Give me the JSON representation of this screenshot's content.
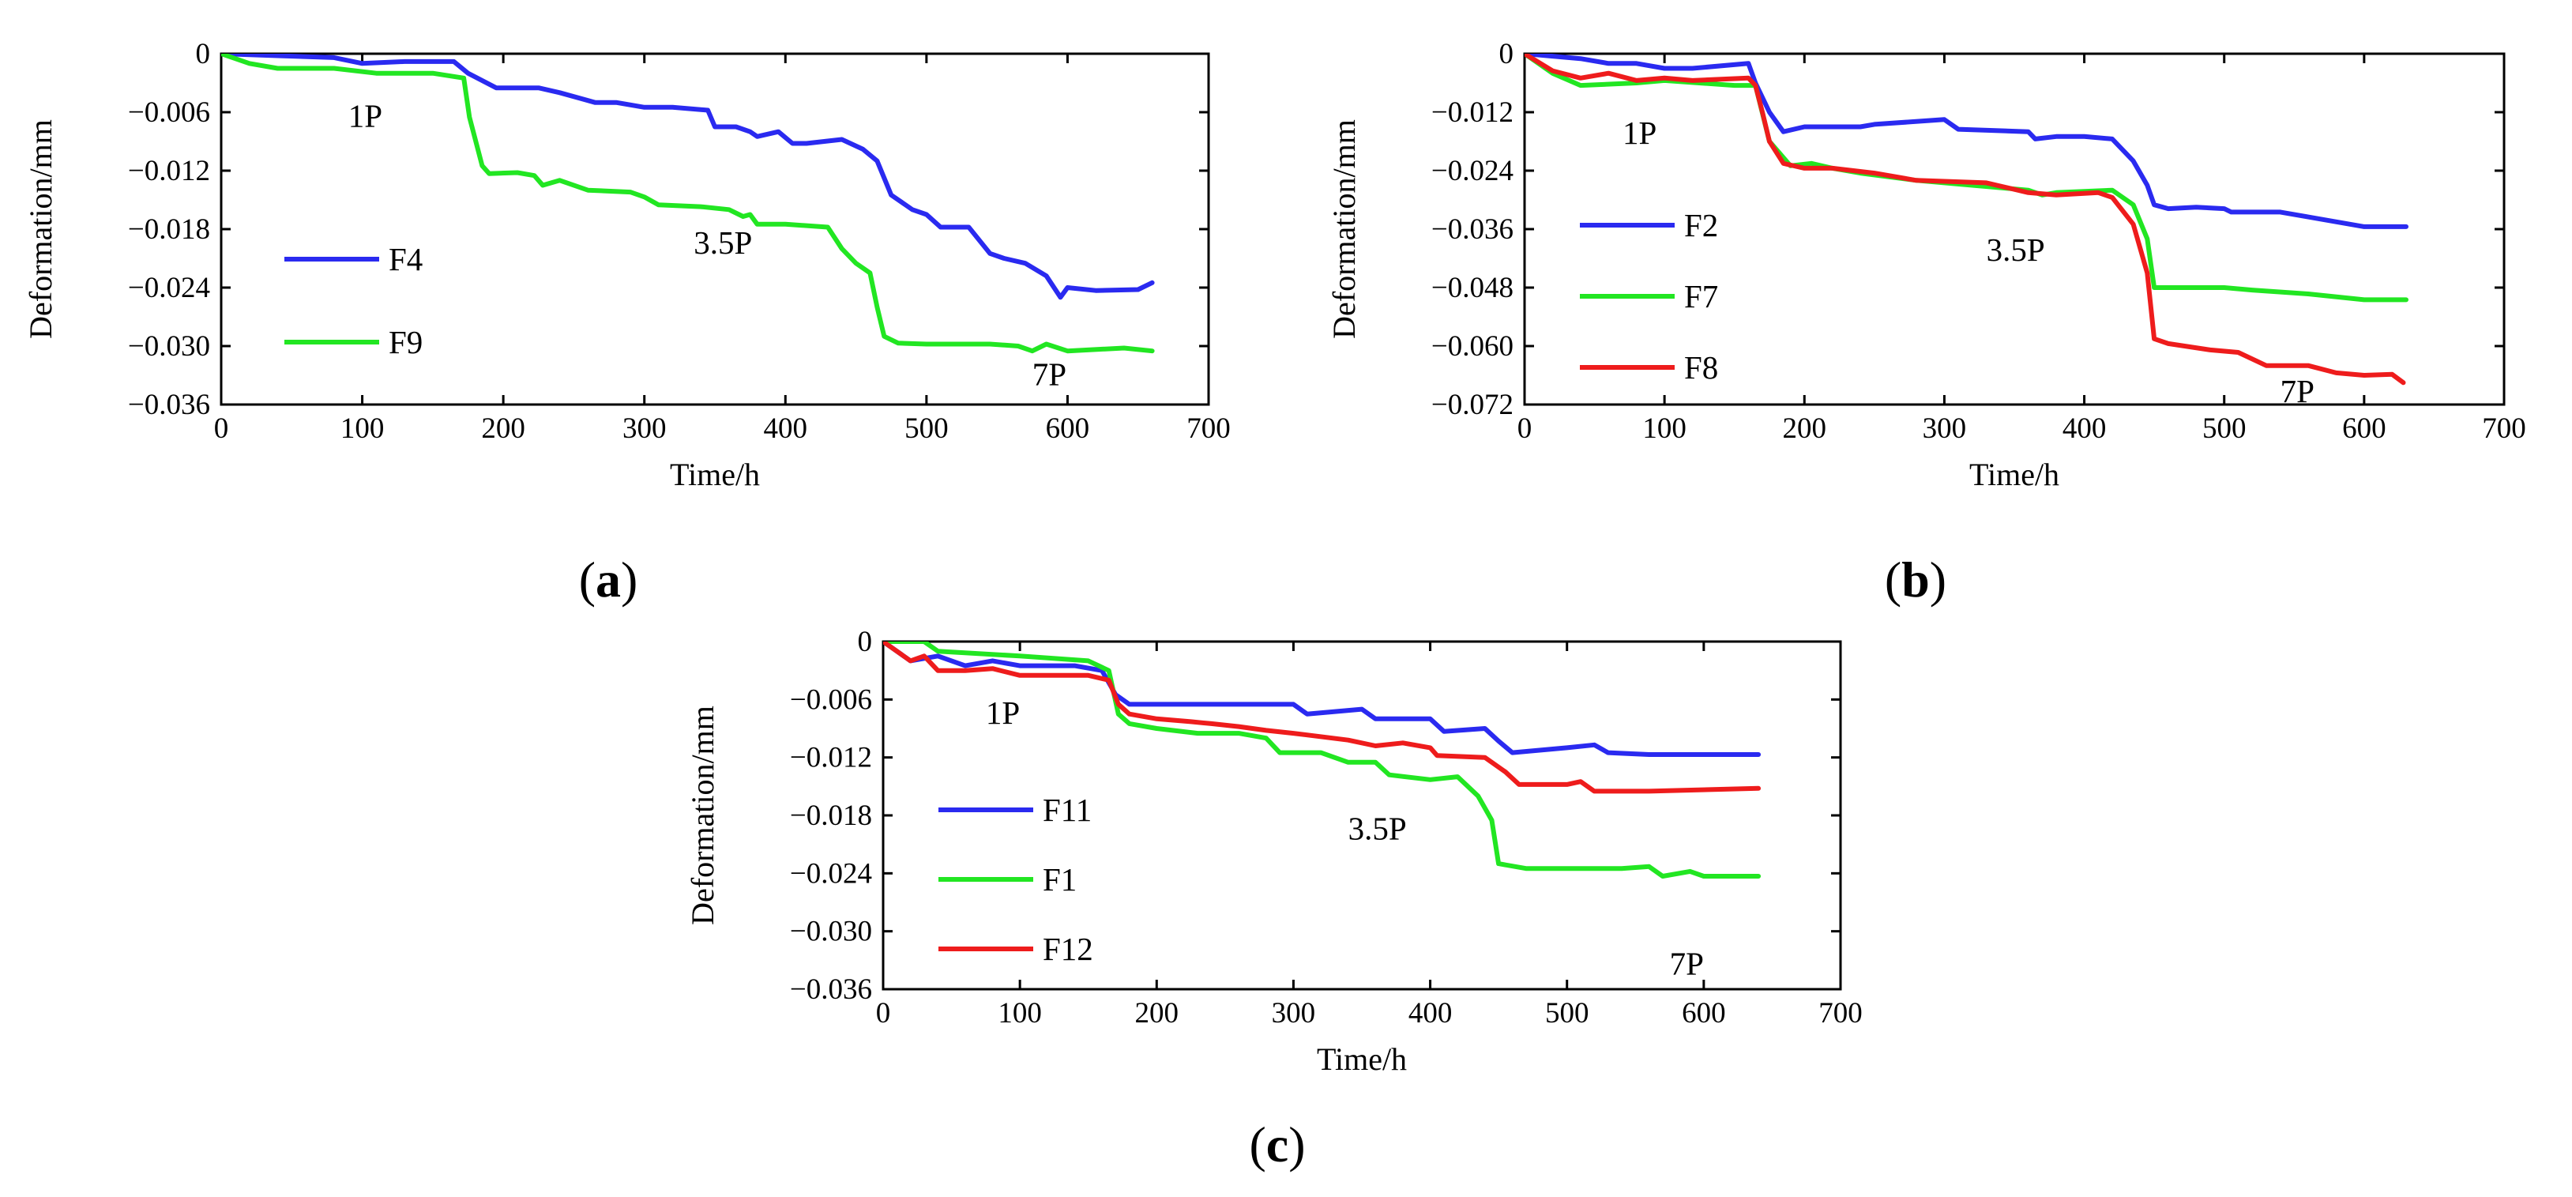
{
  "figure": {
    "background": "#ffffff"
  },
  "chart_data": [
    {
      "type": "line",
      "panel_label_open": "(",
      "panel_label": "a",
      "panel_label_close": ")",
      "xlabel": "Time/h",
      "ylabel": "Deformation/mm",
      "xlim": [
        0,
        700
      ],
      "ylim": [
        -0.036,
        0
      ],
      "xticks": [
        0,
        100,
        200,
        300,
        400,
        500,
        600,
        700
      ],
      "xtick_labels": [
        "0",
        "100",
        "200",
        "300",
        "400",
        "500",
        "600",
        "700"
      ],
      "yticks": [
        0,
        -0.006,
        -0.012,
        -0.018,
        -0.024,
        -0.03,
        -0.036
      ],
      "ytick_labels": [
        "0",
        "−0.006",
        "−0.012",
        "−0.018",
        "−0.024",
        "−0.030",
        "−0.036"
      ],
      "grid": false,
      "legend_position": "left",
      "annotations": [
        {
          "text": "1P",
          "x": 90,
          "y": -0.0075
        },
        {
          "text": "3.5P",
          "x": 335,
          "y": -0.0205
        },
        {
          "text": "7P",
          "x": 575,
          "y": -0.034
        }
      ],
      "series": [
        {
          "name": "F4",
          "color": "#2a2af0",
          "x": [
            0,
            40,
            80,
            100,
            130,
            165,
            175,
            195,
            225,
            240,
            265,
            280,
            300,
            320,
            345,
            350,
            365,
            375,
            380,
            395,
            405,
            415,
            440,
            455,
            465,
            475,
            490,
            500,
            510,
            530,
            545,
            555,
            570,
            585,
            595,
            600,
            620,
            650,
            660
          ],
          "y": [
            0,
            -0.0002,
            -0.0004,
            -0.001,
            -0.0008,
            -0.0008,
            -0.002,
            -0.0035,
            -0.0035,
            -0.004,
            -0.005,
            -0.005,
            -0.0055,
            -0.0055,
            -0.0058,
            -0.0075,
            -0.0075,
            -0.008,
            -0.0085,
            -0.008,
            -0.0092,
            -0.0092,
            -0.0088,
            -0.0098,
            -0.011,
            -0.0145,
            -0.016,
            -0.0165,
            -0.0178,
            -0.0178,
            -0.0205,
            -0.021,
            -0.0215,
            -0.0228,
            -0.025,
            -0.024,
            -0.0243,
            -0.0242,
            -0.0235
          ]
        },
        {
          "name": "F9",
          "color": "#22e622",
          "x": [
            0,
            20,
            40,
            80,
            110,
            150,
            172,
            176,
            185,
            190,
            210,
            222,
            228,
            240,
            260,
            290,
            300,
            310,
            340,
            360,
            370,
            375,
            380,
            400,
            430,
            440,
            450,
            460,
            465,
            470,
            480,
            500,
            530,
            545,
            565,
            575,
            585,
            600,
            640,
            660
          ],
          "y": [
            0,
            -0.001,
            -0.0015,
            -0.0015,
            -0.002,
            -0.002,
            -0.0025,
            -0.0065,
            -0.0115,
            -0.0123,
            -0.0122,
            -0.0125,
            -0.0135,
            -0.013,
            -0.014,
            -0.0142,
            -0.0147,
            -0.0155,
            -0.0157,
            -0.016,
            -0.0167,
            -0.0165,
            -0.0175,
            -0.0175,
            -0.0178,
            -0.02,
            -0.0215,
            -0.0225,
            -0.026,
            -0.029,
            -0.0297,
            -0.0298,
            -0.0298,
            -0.0298,
            -0.03,
            -0.0305,
            -0.0298,
            -0.0305,
            -0.0302,
            -0.0305
          ]
        }
      ]
    },
    {
      "type": "line",
      "panel_label_open": "(",
      "panel_label": "b",
      "panel_label_close": ")",
      "xlabel": "Time/h",
      "ylabel": "Deformation/mm",
      "xlim": [
        0,
        700
      ],
      "ylim": [
        -0.072,
        0
      ],
      "xticks": [
        0,
        100,
        200,
        300,
        400,
        500,
        600,
        700
      ],
      "xtick_labels": [
        "0",
        "100",
        "200",
        "300",
        "400",
        "500",
        "600",
        "700"
      ],
      "yticks": [
        0,
        -0.012,
        -0.024,
        -0.036,
        -0.048,
        -0.06,
        -0.072
      ],
      "ytick_labels": [
        "0",
        "−0.012",
        "−0.024",
        "−0.036",
        "−0.048",
        "−0.060",
        "−0.072"
      ],
      "grid": false,
      "legend_position": "left",
      "annotations": [
        {
          "text": "1P",
          "x": 70,
          "y": -0.0185
        },
        {
          "text": "3.5P",
          "x": 330,
          "y": -0.0425
        },
        {
          "text": "7P",
          "x": 540,
          "y": -0.0715
        }
      ],
      "series": [
        {
          "name": "F2",
          "color": "#2a2af0",
          "x": [
            0,
            40,
            60,
            80,
            100,
            120,
            160,
            165,
            175,
            185,
            200,
            240,
            250,
            300,
            310,
            360,
            365,
            380,
            400,
            420,
            435,
            445,
            450,
            460,
            480,
            500,
            505,
            540,
            560,
            600,
            630
          ],
          "y": [
            0,
            -0.001,
            -0.002,
            -0.002,
            -0.003,
            -0.003,
            -0.002,
            -0.006,
            -0.012,
            -0.016,
            -0.015,
            -0.015,
            -0.0145,
            -0.0135,
            -0.0155,
            -0.016,
            -0.0175,
            -0.017,
            -0.017,
            -0.0175,
            -0.022,
            -0.027,
            -0.031,
            -0.0318,
            -0.0315,
            -0.0318,
            -0.0325,
            -0.0325,
            -0.0335,
            -0.0355,
            -0.0355
          ]
        },
        {
          "name": "F7",
          "color": "#22e622",
          "x": [
            0,
            20,
            40,
            80,
            100,
            150,
            165,
            175,
            190,
            205,
            220,
            240,
            280,
            320,
            360,
            370,
            380,
            420,
            435,
            445,
            450,
            460,
            500,
            520,
            560,
            600,
            630
          ],
          "y": [
            0,
            -0.004,
            -0.0065,
            -0.006,
            -0.0055,
            -0.0065,
            -0.0065,
            -0.018,
            -0.023,
            -0.0225,
            -0.0235,
            -0.0245,
            -0.026,
            -0.027,
            -0.028,
            -0.029,
            -0.0285,
            -0.028,
            -0.031,
            -0.038,
            -0.048,
            -0.048,
            -0.048,
            -0.0485,
            -0.0493,
            -0.0505,
            -0.0505
          ]
        },
        {
          "name": "F8",
          "color": "#ee1c1c",
          "x": [
            0,
            20,
            40,
            60,
            80,
            100,
            120,
            160,
            165,
            170,
            175,
            185,
            200,
            220,
            250,
            280,
            330,
            360,
            380,
            410,
            420,
            435,
            445,
            450,
            460,
            490,
            510,
            530,
            560,
            580,
            600,
            620,
            628
          ],
          "y": [
            0,
            -0.0035,
            -0.005,
            -0.004,
            -0.0055,
            -0.005,
            -0.0055,
            -0.005,
            -0.0065,
            -0.012,
            -0.018,
            -0.0225,
            -0.0235,
            -0.0235,
            -0.0245,
            -0.026,
            -0.0265,
            -0.0285,
            -0.029,
            -0.0285,
            -0.0295,
            -0.035,
            -0.045,
            -0.0585,
            -0.0595,
            -0.0608,
            -0.0613,
            -0.064,
            -0.064,
            -0.0655,
            -0.066,
            -0.0658,
            -0.0675
          ]
        }
      ]
    },
    {
      "type": "line",
      "panel_label_open": "(",
      "panel_label": "c",
      "panel_label_close": ")",
      "xlabel": "Time/h",
      "ylabel": "Deformation/mm",
      "xlim": [
        0,
        700
      ],
      "ylim": [
        -0.036,
        0
      ],
      "xticks": [
        0,
        100,
        200,
        300,
        400,
        500,
        600,
        700
      ],
      "xtick_labels": [
        "0",
        "100",
        "200",
        "300",
        "400",
        "500",
        "600",
        "700"
      ],
      "yticks": [
        0,
        -0.006,
        -0.012,
        -0.018,
        -0.024,
        -0.03,
        -0.036
      ],
      "ytick_labels": [
        "0",
        "−0.006",
        "−0.012",
        "−0.018",
        "−0.024",
        "−0.030",
        "−0.036"
      ],
      "grid": false,
      "legend_position": "left",
      "annotations": [
        {
          "text": "1P",
          "x": 75,
          "y": -0.0085
        },
        {
          "text": "3.5P",
          "x": 340,
          "y": -0.0205
        },
        {
          "text": "7P",
          "x": 575,
          "y": -0.0345
        }
      ],
      "series": [
        {
          "name": "F11",
          "color": "#2a2af0",
          "x": [
            0,
            20,
            40,
            60,
            80,
            100,
            140,
            160,
            170,
            180,
            200,
            240,
            300,
            310,
            350,
            360,
            400,
            410,
            440,
            450,
            460,
            500,
            520,
            530,
            560,
            600,
            640
          ],
          "y": [
            0,
            -0.002,
            -0.0015,
            -0.0025,
            -0.002,
            -0.0025,
            -0.0025,
            -0.003,
            -0.0055,
            -0.0065,
            -0.0065,
            -0.0065,
            -0.0065,
            -0.0075,
            -0.007,
            -0.008,
            -0.008,
            -0.0093,
            -0.009,
            -0.0103,
            -0.0115,
            -0.011,
            -0.0107,
            -0.0115,
            -0.0117,
            -0.0117,
            -0.0117
          ]
        },
        {
          "name": "F1",
          "color": "#22e622",
          "x": [
            0,
            30,
            40,
            100,
            150,
            165,
            172,
            180,
            200,
            230,
            260,
            280,
            290,
            320,
            340,
            360,
            370,
            400,
            420,
            435,
            445,
            450,
            470,
            500,
            540,
            560,
            570,
            590,
            600,
            640
          ],
          "y": [
            0,
            0,
            -0.001,
            -0.0015,
            -0.002,
            -0.003,
            -0.0075,
            -0.0085,
            -0.009,
            -0.0095,
            -0.0095,
            -0.01,
            -0.0115,
            -0.0115,
            -0.0125,
            -0.0125,
            -0.0138,
            -0.0143,
            -0.014,
            -0.016,
            -0.0185,
            -0.023,
            -0.0235,
            -0.0235,
            -0.0235,
            -0.0233,
            -0.0243,
            -0.0238,
            -0.0243,
            -0.0243
          ]
        },
        {
          "name": "F12",
          "color": "#ee1c1c",
          "x": [
            0,
            20,
            30,
            40,
            60,
            80,
            100,
            150,
            165,
            172,
            180,
            200,
            225,
            240,
            260,
            280,
            300,
            340,
            360,
            380,
            400,
            405,
            440,
            455,
            465,
            500,
            510,
            520,
            560,
            640
          ],
          "y": [
            0,
            -0.002,
            -0.0015,
            -0.003,
            -0.003,
            -0.0028,
            -0.0035,
            -0.0035,
            -0.004,
            -0.0065,
            -0.0075,
            -0.008,
            -0.0083,
            -0.0085,
            -0.0088,
            -0.0092,
            -0.0095,
            -0.0102,
            -0.0108,
            -0.0105,
            -0.011,
            -0.0118,
            -0.012,
            -0.0135,
            -0.0148,
            -0.0148,
            -0.0145,
            -0.0155,
            -0.0155,
            -0.0152
          ]
        }
      ]
    }
  ]
}
